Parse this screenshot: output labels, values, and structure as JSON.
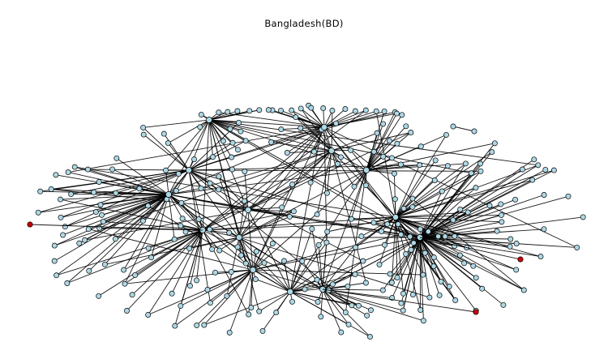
{
  "title": "Bangladesh(BD)",
  "colors": {
    "node_default": "#add8e6",
    "node_highlight": "#cc0000",
    "edge": "#000000",
    "background": "#ffffff"
  },
  "graph": {
    "hub_count": 14,
    "leaf_count": 260,
    "highlighted_node_count": 3
  }
}
